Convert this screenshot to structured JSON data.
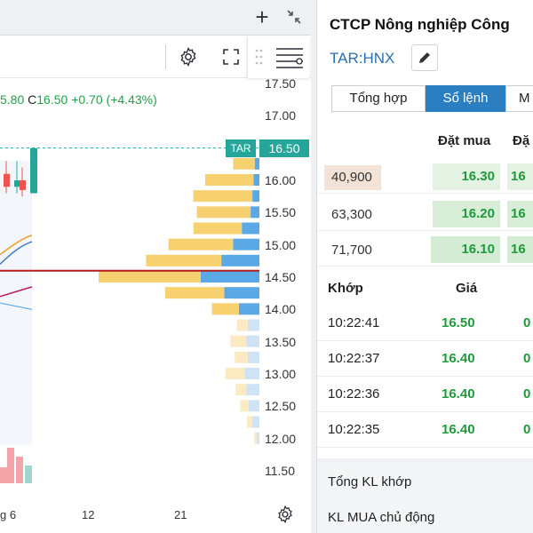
{
  "window": {
    "add_icon": "+",
    "collapse_icon": "collapse-arrows"
  },
  "chart": {
    "ohlc": {
      "open_partial": "5.80",
      "close_label": "C",
      "close": "16.50",
      "change": "+0.70",
      "change_pct": "(+4.43%)"
    },
    "price_axis": [
      "17.50",
      "17.00",
      "16.50",
      "16.00",
      "15.50",
      "15.00",
      "14.50",
      "14.00",
      "13.50",
      "13.00",
      "12.50",
      "12.00",
      "11.50"
    ],
    "ticker_tag": "TAR",
    "last_price_tag": "16.50",
    "time_axis": [
      "g 6",
      "12",
      "21"
    ],
    "colors": {
      "up": "#26a69a",
      "down": "#ef5350",
      "profile_buy": "#f7d170",
      "profile_sell": "#5aa9e6",
      "poc_line": "#b71c1c"
    },
    "volume_profile": [
      {
        "price": 16.25,
        "buy": 0.2,
        "sell": 0.08
      },
      {
        "price": 16.0,
        "buy": 0.45,
        "sell": 0.1
      },
      {
        "price": 15.75,
        "buy": 0.55,
        "sell": 0.12
      },
      {
        "price": 15.5,
        "buy": 0.5,
        "sell": 0.15
      },
      {
        "price": 15.25,
        "buy": 0.45,
        "sell": 0.3
      },
      {
        "price": 15.0,
        "buy": 0.6,
        "sell": 0.45
      },
      {
        "price": 14.75,
        "buy": 0.7,
        "sell": 0.65
      },
      {
        "price": 14.5,
        "buy": 0.95,
        "sell": 1.0
      },
      {
        "price": 14.25,
        "buy": 0.55,
        "sell": 0.6
      },
      {
        "price": 14.0,
        "buy": 0.25,
        "sell": 0.35
      },
      {
        "price": 13.75,
        "buy": 0.1,
        "sell": 0.2
      },
      {
        "price": 13.5,
        "buy": 0.15,
        "sell": 0.22
      },
      {
        "price": 13.25,
        "buy": 0.12,
        "sell": 0.2
      },
      {
        "price": 13.0,
        "buy": 0.18,
        "sell": 0.25
      },
      {
        "price": 12.75,
        "buy": 0.1,
        "sell": 0.22
      },
      {
        "price": 12.5,
        "buy": 0.08,
        "sell": 0.18
      },
      {
        "price": 12.25,
        "buy": 0.05,
        "sell": 0.12
      },
      {
        "price": 12.0,
        "buy": 0.02,
        "sell": 0.05
      }
    ]
  },
  "panel": {
    "company_name": "CTCP Nông nghiệp Công",
    "ticker": "TAR:HNX",
    "tabs": [
      "Tổng hợp",
      "Sổ lệnh",
      "M"
    ],
    "orderbook_header": {
      "bid": "Đặt mua",
      "ask_partial": "Đặ"
    },
    "orderbook": [
      {
        "volume": "40,900",
        "bid_price": "16.30",
        "bid_partial": "16",
        "highlight": true
      },
      {
        "volume": "63,300",
        "bid_price": "16.20",
        "bid_partial": "16",
        "highlight": false
      },
      {
        "volume": "71,700",
        "bid_price": "16.10",
        "bid_partial": "16",
        "highlight": false
      }
    ],
    "trades_header": {
      "time": "Khớp",
      "price": "Giá"
    },
    "trades": [
      {
        "time": "10:22:41",
        "price": "16.50",
        "partial": "0"
      },
      {
        "time": "10:22:37",
        "price": "16.40",
        "partial": "0"
      },
      {
        "time": "10:22:36",
        "price": "16.40",
        "partial": "0"
      },
      {
        "time": "10:22:35",
        "price": "16.40",
        "partial": "0"
      }
    ],
    "summary": {
      "total_matched": "Tổng KL khớp",
      "active_buy": "KL MUA chủ động"
    }
  }
}
